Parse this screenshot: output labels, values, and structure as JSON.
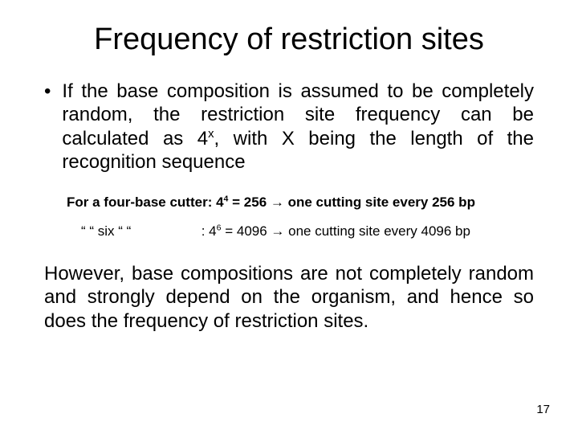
{
  "title": "Frequency of restriction sites",
  "bullet": {
    "dot": "•",
    "text_pre": "If the base composition is assumed to be completely random, the restriction site frequency can be calculated as 4",
    "exp": "x",
    "text_post": ", with X being the length of the recognition sequence"
  },
  "example": {
    "line1_pre": "For a four-base cutter: 4",
    "line1_exp": "4",
    "line1_mid": " = 256 ",
    "arrow": "→",
    "line1_post": " one cutting site every 256 bp",
    "line2_lead": "“   “    six   “          “ ",
    "line2_pre": "   : 4",
    "line2_exp": "6",
    "line2_mid": " = 4096 ",
    "line2_post": " one cutting site every 4096 bp"
  },
  "para": "However, base compositions are not completely random and strongly depend on the organism, and hence so does the frequency of restriction sites.",
  "page_number": "17"
}
